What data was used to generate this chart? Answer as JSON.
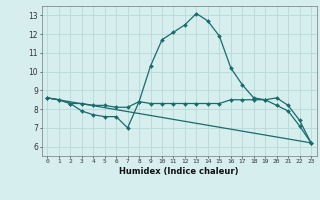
{
  "xlabel": "Humidex (Indice chaleur)",
  "background_color": "#d6eeee",
  "grid_color": "#b8d8d8",
  "line_color": "#1a6b6b",
  "xlim": [
    -0.5,
    23.5
  ],
  "ylim": [
    5.5,
    13.5
  ],
  "yticks": [
    6,
    7,
    8,
    9,
    10,
    11,
    12,
    13
  ],
  "xtick_labels": [
    "0",
    "1",
    "2",
    "3",
    "4",
    "5",
    "6",
    "7",
    "8",
    "9",
    "10",
    "11",
    "12",
    "13",
    "14",
    "15",
    "16",
    "17",
    "18",
    "19",
    "20",
    "21",
    "22",
    "23"
  ],
  "line1_x": [
    0,
    1,
    2,
    3,
    4,
    5,
    6,
    7,
    8,
    9,
    10,
    11,
    12,
    13,
    14,
    15,
    16,
    17,
    18,
    19,
    20,
    21,
    22,
    23
  ],
  "line1_y": [
    8.6,
    8.5,
    8.3,
    7.9,
    7.7,
    7.6,
    7.6,
    7.0,
    8.4,
    10.3,
    11.7,
    12.1,
    12.5,
    13.1,
    12.7,
    11.9,
    10.2,
    9.3,
    8.6,
    8.5,
    8.2,
    7.9,
    7.1,
    6.2
  ],
  "line2_x": [
    0,
    1,
    2,
    3,
    4,
    5,
    6,
    7,
    8,
    9,
    10,
    11,
    12,
    13,
    14,
    15,
    16,
    17,
    18,
    19,
    20,
    21,
    22,
    23
  ],
  "line2_y": [
    8.6,
    8.5,
    8.3,
    8.3,
    8.2,
    8.2,
    8.1,
    8.1,
    8.4,
    8.3,
    8.3,
    8.3,
    8.3,
    8.3,
    8.3,
    8.3,
    8.5,
    8.5,
    8.5,
    8.5,
    8.6,
    8.2,
    7.4,
    6.2
  ],
  "line3_x": [
    0,
    23
  ],
  "line3_y": [
    8.6,
    6.2
  ]
}
